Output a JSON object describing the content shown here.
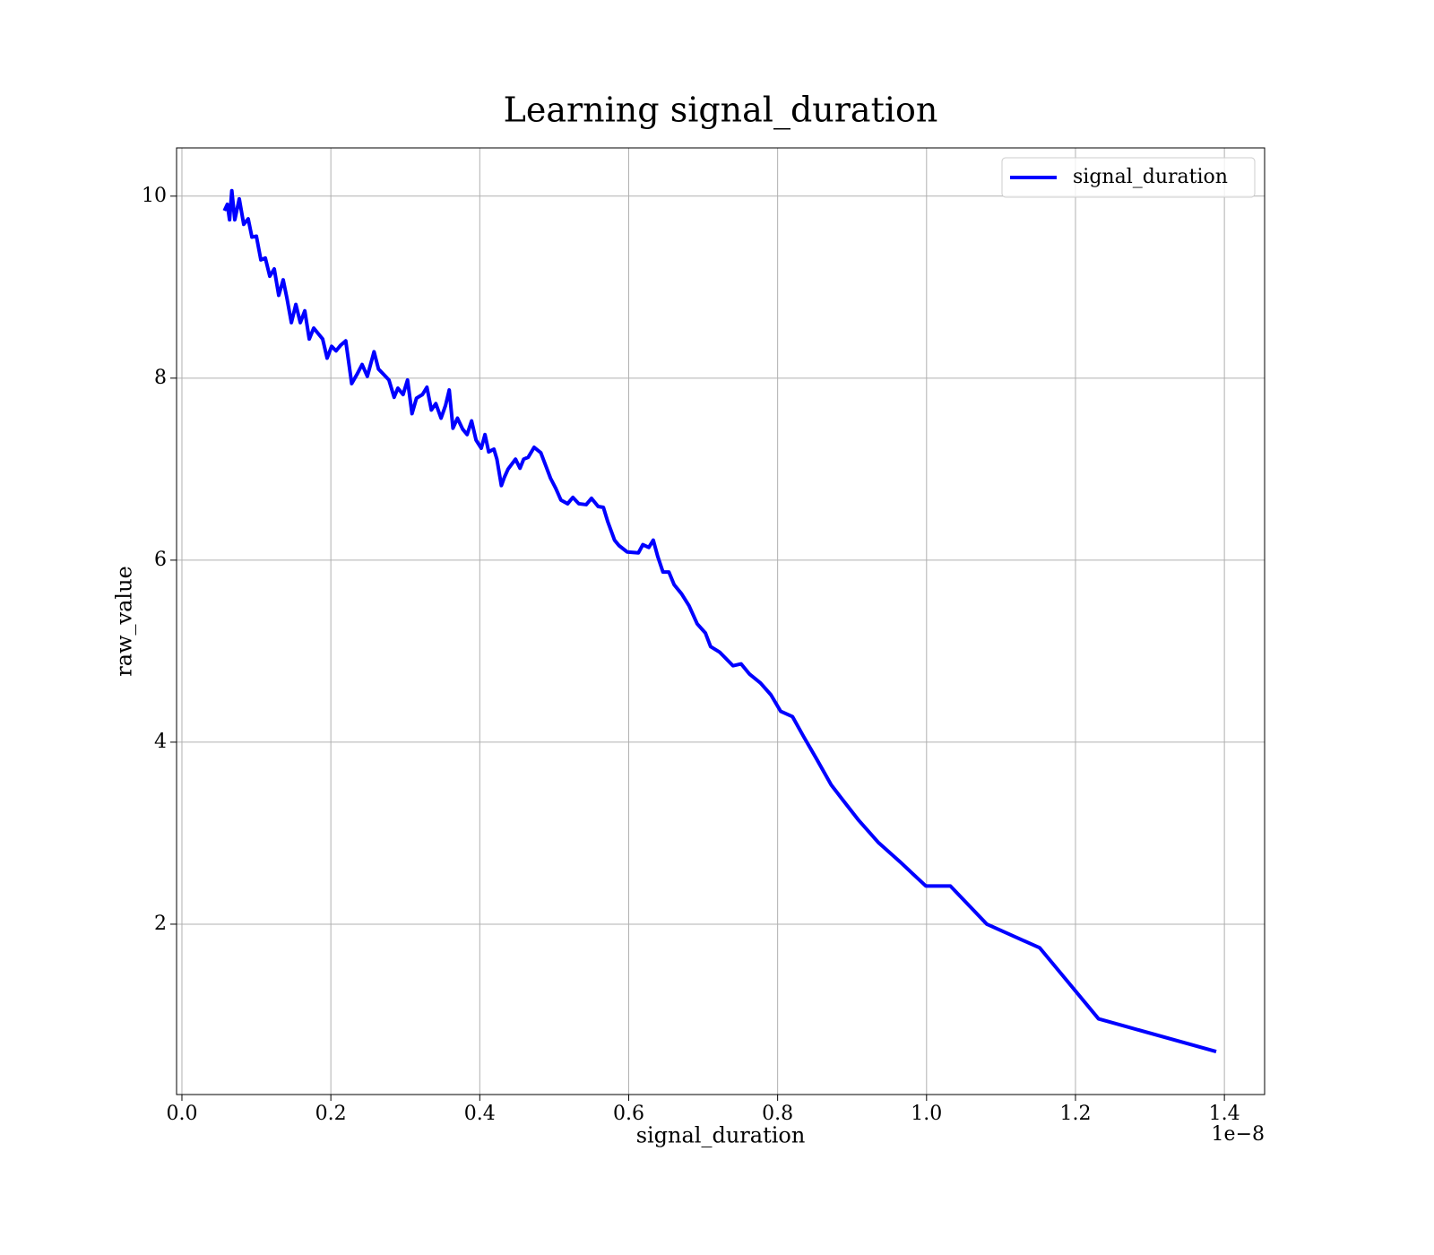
{
  "chart_data": {
    "type": "line",
    "title": "Learning signal_duration",
    "x_label": "signal_duration",
    "y_label": "raw_value",
    "x_offset_label": "1e−8",
    "x": [
      0.057,
      0.061,
      0.064,
      0.067,
      0.071,
      0.077,
      0.083,
      0.089,
      0.094,
      0.1,
      0.106,
      0.112,
      0.118,
      0.124,
      0.13,
      0.136,
      0.141,
      0.147,
      0.153,
      0.159,
      0.165,
      0.171,
      0.177,
      0.183,
      0.189,
      0.195,
      0.201,
      0.207,
      0.213,
      0.22,
      0.228,
      0.235,
      0.242,
      0.249,
      0.258,
      0.264,
      0.271,
      0.278,
      0.285,
      0.29,
      0.297,
      0.303,
      0.309,
      0.315,
      0.323,
      0.329,
      0.335,
      0.341,
      0.348,
      0.354,
      0.359,
      0.364,
      0.37,
      0.377,
      0.383,
      0.389,
      0.395,
      0.402,
      0.407,
      0.412,
      0.419,
      0.423,
      0.429,
      0.433,
      0.438,
      0.448,
      0.454,
      0.459,
      0.465,
      0.473,
      0.482,
      0.489,
      0.495,
      0.502,
      0.509,
      0.518,
      0.525,
      0.533,
      0.543,
      0.55,
      0.559,
      0.566,
      0.572,
      0.581,
      0.587,
      0.598,
      0.613,
      0.619,
      0.627,
      0.633,
      0.639,
      0.646,
      0.654,
      0.661,
      0.671,
      0.681,
      0.692,
      0.703,
      0.71,
      0.722,
      0.74,
      0.751,
      0.762,
      0.777,
      0.791,
      0.804,
      0.82,
      0.835,
      0.852,
      0.872,
      0.888,
      0.909,
      0.935,
      0.965,
      0.999,
      1.032,
      1.081,
      1.152,
      1.231,
      1.389
    ],
    "series": [
      {
        "name": "signal_duration",
        "color": "#0000ff",
        "values": [
          9.84,
          9.91,
          9.74,
          10.06,
          9.74,
          9.97,
          9.69,
          9.75,
          9.55,
          9.56,
          9.3,
          9.32,
          9.12,
          9.2,
          8.91,
          9.08,
          8.88,
          8.61,
          8.81,
          8.61,
          8.74,
          8.43,
          8.55,
          8.49,
          8.43,
          8.22,
          8.35,
          8.3,
          8.36,
          8.41,
          7.94,
          8.04,
          8.15,
          8.02,
          8.29,
          8.1,
          8.04,
          7.98,
          7.79,
          7.89,
          7.82,
          7.98,
          7.61,
          7.78,
          7.82,
          7.9,
          7.65,
          7.72,
          7.56,
          7.7,
          7.87,
          7.45,
          7.56,
          7.44,
          7.38,
          7.53,
          7.32,
          7.23,
          7.38,
          7.19,
          7.22,
          7.11,
          6.82,
          6.91,
          7.0,
          7.11,
          7.01,
          7.11,
          7.13,
          7.24,
          7.18,
          7.03,
          6.9,
          6.79,
          6.66,
          6.62,
          6.69,
          6.62,
          6.61,
          6.68,
          6.59,
          6.58,
          6.42,
          6.22,
          6.16,
          6.09,
          6.08,
          6.17,
          6.14,
          6.22,
          6.04,
          5.87,
          5.87,
          5.73,
          5.63,
          5.5,
          5.3,
          5.2,
          5.05,
          4.99,
          4.84,
          4.86,
          4.75,
          4.65,
          4.52,
          4.34,
          4.28,
          4.06,
          3.82,
          3.53,
          3.36,
          3.14,
          2.9,
          2.68,
          2.42,
          2.42,
          2.0,
          1.74,
          0.96,
          0.6
        ]
      }
    ],
    "xlim": [
      -0.0072,
      1.454
    ],
    "ylim": [
      0.128,
      10.53
    ],
    "xticks": [
      {
        "value": 0,
        "label": "0.0"
      },
      0.2,
      0.4,
      0.6,
      0.8,
      {
        "value": 1,
        "label": "1.0"
      },
      1.2,
      1.4
    ],
    "yticks": [
      2,
      4,
      6,
      8,
      10
    ],
    "grid": true,
    "legend": "upper right"
  }
}
